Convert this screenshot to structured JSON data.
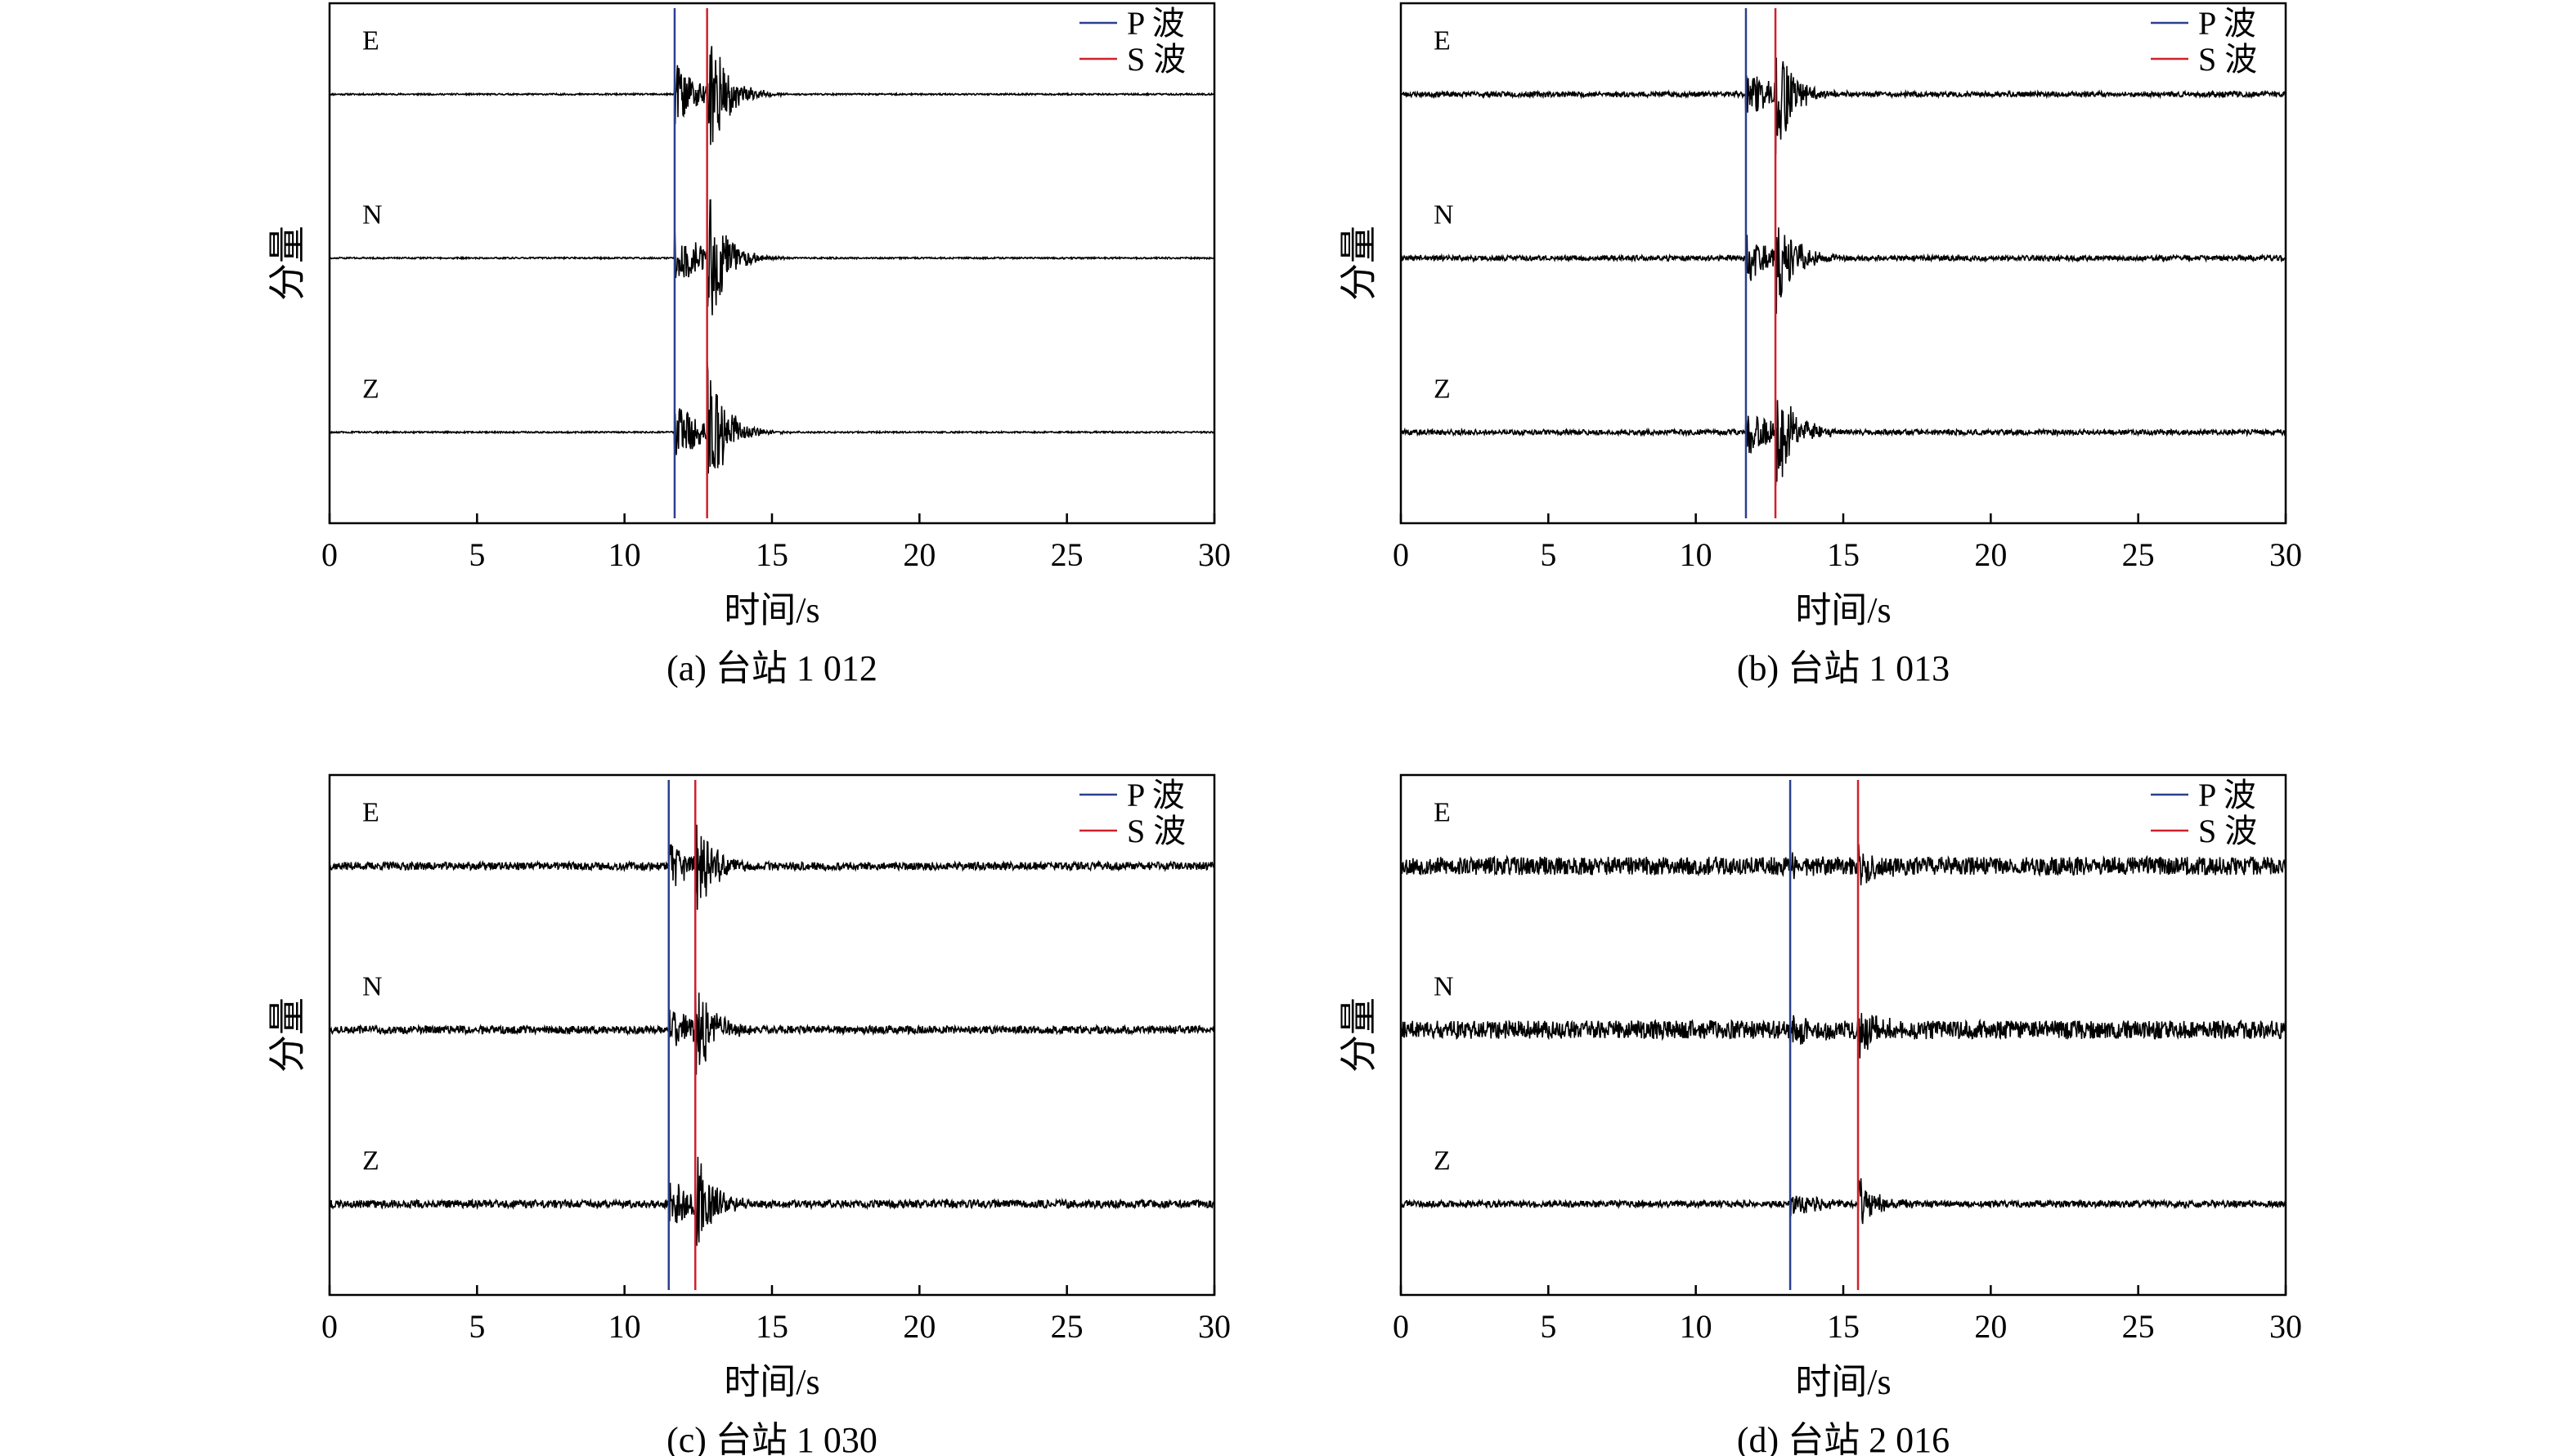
{
  "colors": {
    "p_wave": "#2b3f8f",
    "s_wave": "#d0202a",
    "trace": "#000000",
    "axis": "#000000"
  },
  "chart_data": [
    {
      "type": "line",
      "caption": "(a) 台站 1 012",
      "xlabel": "时间/s",
      "ylabel": "分量",
      "xlim": [
        0,
        30
      ],
      "xticks": [
        0,
        5,
        10,
        15,
        20,
        25,
        30
      ],
      "legend": {
        "position": "top-right",
        "entries": [
          "P 波",
          "S 波"
        ]
      },
      "series": [
        {
          "name": "E",
          "noise": 0.6,
          "burst": 7.0
        },
        {
          "name": "N",
          "noise": 0.6,
          "burst": 7.0
        },
        {
          "name": "Z",
          "noise": 0.6,
          "burst": 7.0
        }
      ],
      "p_arrival": 11.7,
      "s_arrival": 12.8
    },
    {
      "type": "line",
      "caption": "(b) 台站 1 013",
      "xlabel": "时间/s",
      "ylabel": "分量",
      "xlim": [
        0,
        30
      ],
      "xticks": [
        0,
        5,
        10,
        15,
        20,
        25,
        30
      ],
      "legend": {
        "position": "top-right",
        "entries": [
          "P 波",
          "S 波"
        ]
      },
      "series": [
        {
          "name": "E",
          "noise": 2.0,
          "burst": 5.5
        },
        {
          "name": "N",
          "noise": 2.0,
          "burst": 5.5
        },
        {
          "name": "Z",
          "noise": 2.0,
          "burst": 5.5
        }
      ],
      "p_arrival": 11.7,
      "s_arrival": 12.7
    },
    {
      "type": "line",
      "caption": "(c) 台站 1 030",
      "xlabel": "时间/s",
      "ylabel": "分量",
      "xlim": [
        0,
        30
      ],
      "xticks": [
        0,
        5,
        10,
        15,
        20,
        25,
        30
      ],
      "legend": {
        "position": "top-right",
        "entries": [
          "P 波",
          "S 波"
        ]
      },
      "series": [
        {
          "name": "E",
          "noise": 3.0,
          "burst": 5.0
        },
        {
          "name": "N",
          "noise": 3.0,
          "burst": 5.0
        },
        {
          "name": "Z",
          "noise": 3.0,
          "burst": 5.0
        }
      ],
      "p_arrival": 11.5,
      "s_arrival": 12.4
    },
    {
      "type": "line",
      "caption": "(d) 台站 2 016",
      "xlabel": "时间/s",
      "ylabel": "分量",
      "xlim": [
        0,
        30
      ],
      "xticks": [
        0,
        5,
        10,
        15,
        20,
        25,
        30
      ],
      "legend": {
        "position": "top-right",
        "entries": [
          "P 波",
          "S 波"
        ]
      },
      "series": [
        {
          "name": "E",
          "noise": 7.0,
          "burst": 2.0
        },
        {
          "name": "N",
          "noise": 7.0,
          "burst": 2.0
        },
        {
          "name": "Z",
          "noise": 2.5,
          "burst": 3.0
        }
      ],
      "p_arrival": 13.2,
      "s_arrival": 15.5
    }
  ]
}
